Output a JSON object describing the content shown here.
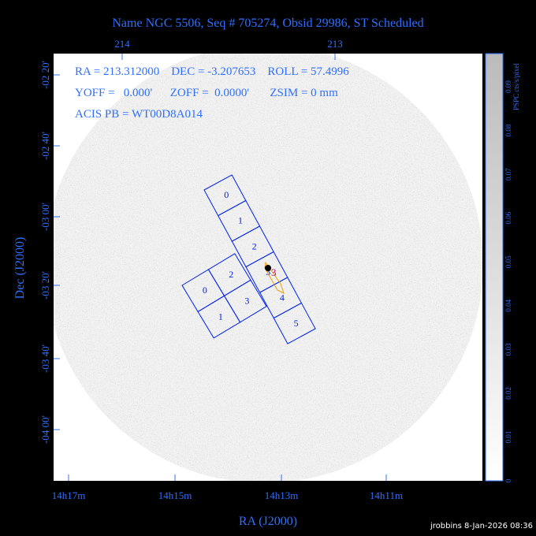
{
  "header": {
    "title": "Name NGC 5506, Seq # 705274, Obsid 29986, ST Scheduled"
  },
  "axes": {
    "top_ticks": [
      "214",
      "213"
    ],
    "left_ticks": [
      "-02 20'",
      "-02 40'",
      "-03 00'",
      "-03 20'",
      "-03 40'",
      "-04 00'"
    ],
    "bottom_ticks": [
      "14h17m",
      "14h15m",
      "14h13m",
      "14h11m"
    ],
    "x_label": "RA (J2000)",
    "y_label": "Dec (J2000)"
  },
  "info": {
    "lines": [
      "RA = 213.312000    DEC = -3.207653    ROLL = 57.4996",
      "YOFF =   0.000'      ZOFF =  0.0000'       ZSIM = 0 mm",
      "ACIS PB = WT00D8A014"
    ]
  },
  "chips": {
    "s_array": [
      "0",
      "1",
      "2",
      "3",
      "4",
      "5"
    ],
    "i_array": [
      "0",
      "2",
      "1",
      "3"
    ],
    "target": "3"
  },
  "colorbar": {
    "label": "PSPC cts/s/pixel",
    "ticks": [
      "0",
      "0.01",
      "0.02",
      "0.03",
      "0.04",
      "0.05",
      "0.06",
      "0.07",
      "0.08",
      "0.09"
    ]
  },
  "footer": {
    "credit": "jrobbins  8-Jan-2026 08:36"
  }
}
